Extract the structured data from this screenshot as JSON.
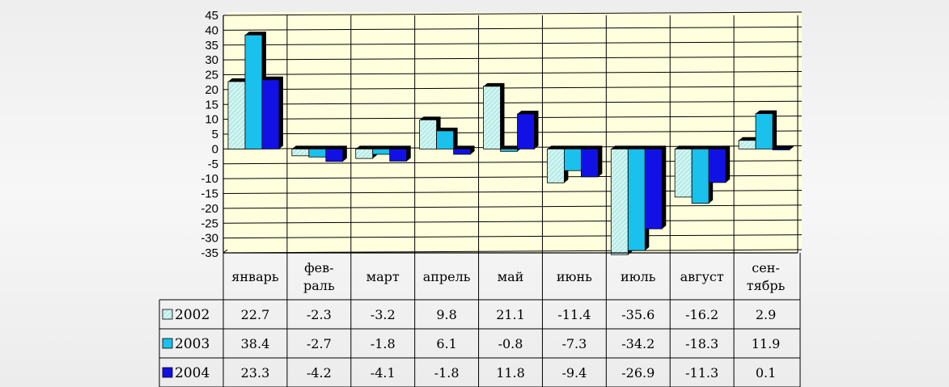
{
  "chart_data": {
    "type": "bar",
    "categories": [
      "январь",
      "фев-\nраль",
      "март",
      "апрель",
      "май",
      "июнь",
      "июль",
      "август",
      "сен-\nтябрь"
    ],
    "series": [
      {
        "name": "2002",
        "values": [
          22.7,
          -2.3,
          -3.2,
          9.8,
          21.1,
          -11.4,
          -35.6,
          -16.2,
          2.9
        ],
        "color": "#b7ece8",
        "pattern": "hatched"
      },
      {
        "name": "2003",
        "values": [
          38.4,
          -2.7,
          -1.8,
          6.1,
          -0.8,
          -7.3,
          -34.2,
          -18.3,
          11.9
        ],
        "color": "#19c1ec"
      },
      {
        "name": "2004",
        "values": [
          23.3,
          -4.2,
          -4.1,
          -1.8,
          11.8,
          -9.4,
          -26.9,
          -11.3,
          0.1
        ],
        "color": "#1111e6"
      }
    ],
    "ylim": [
      -35,
      45
    ],
    "yticks": [
      "45",
      "40",
      "35",
      "30",
      "25",
      "20",
      "15",
      "10",
      "5",
      "0",
      "-5",
      "-10",
      "-15",
      "-20",
      "-25",
      "-30",
      "-35"
    ],
    "grid": true,
    "legend": "in data table",
    "data_table": [
      {
        "series": "2002",
        "cells": [
          "22.7",
          "-2.3",
          "-3.2",
          "9.8",
          "21.1",
          "-11.4",
          "-35.6",
          "-16.2",
          "2.9"
        ]
      },
      {
        "series": "2003",
        "cells": [
          "38.4",
          "-2.7",
          "-1.8",
          "6.1",
          "-0.8",
          "-7.3",
          "-34.2",
          "-18.3",
          "11.9"
        ]
      },
      {
        "series": "2004",
        "cells": [
          "23.3",
          "-4.2",
          "-4.1",
          "-1.8",
          "11.8",
          "-9.4",
          "-26.9",
          "-11.3",
          "0.1"
        ]
      }
    ],
    "colors": {
      "plot_background": "#ffffdd",
      "grid": "#000000",
      "bar_shadow": "#000000"
    }
  }
}
